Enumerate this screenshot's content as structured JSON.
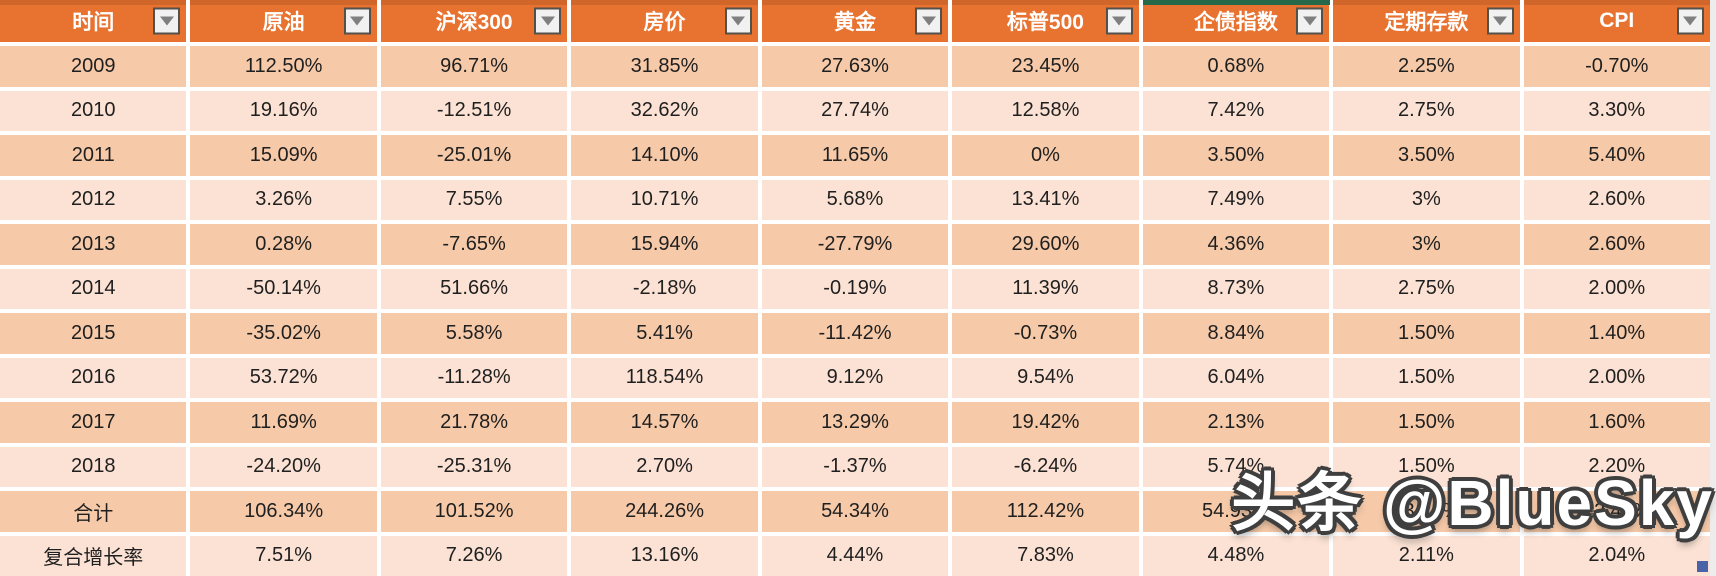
{
  "table": {
    "columns": [
      {
        "key": "time",
        "label": "时间"
      },
      {
        "key": "crude-oil",
        "label": "原油"
      },
      {
        "key": "csi300",
        "label": "沪深300"
      },
      {
        "key": "house-price",
        "label": "房价"
      },
      {
        "key": "gold",
        "label": "黄金"
      },
      {
        "key": "sp500",
        "label": "标普500"
      },
      {
        "key": "corp-bond-index",
        "label": "企债指数"
      },
      {
        "key": "fixed-deposit",
        "label": "定期存款"
      },
      {
        "key": "cpi",
        "label": "CPI"
      }
    ],
    "filter_icon": "filter-dropdown-triangle",
    "rows": [
      {
        "label": "2009",
        "values": [
          "112.50%",
          "96.71%",
          "31.85%",
          "27.63%",
          "23.45%",
          "0.68%",
          "2.25%",
          "-0.70%"
        ]
      },
      {
        "label": "2010",
        "values": [
          "19.16%",
          "-12.51%",
          "32.62%",
          "27.74%",
          "12.58%",
          "7.42%",
          "2.75%",
          "3.30%"
        ]
      },
      {
        "label": "2011",
        "values": [
          "15.09%",
          "-25.01%",
          "14.10%",
          "11.65%",
          "0%",
          "3.50%",
          "3.50%",
          "5.40%"
        ]
      },
      {
        "label": "2012",
        "values": [
          "3.26%",
          "7.55%",
          "10.71%",
          "5.68%",
          "13.41%",
          "7.49%",
          "3%",
          "2.60%"
        ]
      },
      {
        "label": "2013",
        "values": [
          "0.28%",
          "-7.65%",
          "15.94%",
          "-27.79%",
          "29.60%",
          "4.36%",
          "3%",
          "2.60%"
        ]
      },
      {
        "label": "2014",
        "values": [
          "-50.14%",
          "51.66%",
          "-2.18%",
          "-0.19%",
          "11.39%",
          "8.73%",
          "2.75%",
          "2.00%"
        ]
      },
      {
        "label": "2015",
        "values": [
          "-35.02%",
          "5.58%",
          "5.41%",
          "-11.42%",
          "-0.73%",
          "8.84%",
          "1.50%",
          "1.40%"
        ]
      },
      {
        "label": "2016",
        "values": [
          "53.72%",
          "-11.28%",
          "118.54%",
          "9.12%",
          "9.54%",
          "6.04%",
          "1.50%",
          "2.00%"
        ]
      },
      {
        "label": "2017",
        "values": [
          "11.69%",
          "21.78%",
          "14.57%",
          "13.29%",
          "19.42%",
          "2.13%",
          "1.50%",
          "1.60%"
        ]
      },
      {
        "label": "2018",
        "values": [
          "-24.20%",
          "-25.31%",
          "2.70%",
          "-1.37%",
          "-6.24%",
          "5.74%",
          "1.50%",
          "2.20%"
        ]
      },
      {
        "label": "合计",
        "values": [
          "106.34%",
          "101.52%",
          "244.26%",
          "54.34%",
          "112.42%",
          "54.93%",
          "23.25%",
          "22.40%"
        ]
      },
      {
        "label": "复合增长率",
        "values": [
          "7.51%",
          "7.26%",
          "13.16%",
          "4.44%",
          "7.83%",
          "4.48%",
          "2.11%",
          "2.04%"
        ]
      }
    ]
  },
  "watermark": {
    "text": "头条 @BlueSky"
  },
  "colors": {
    "header_bg": "#E8722F",
    "header_text": "#FFFFFF",
    "row_dark": "#F6C9A8",
    "row_light": "#FBE2D4",
    "body_text": "#1F1F1F",
    "green_strip": "#26694A",
    "handle_blue": "#4A63A8"
  }
}
